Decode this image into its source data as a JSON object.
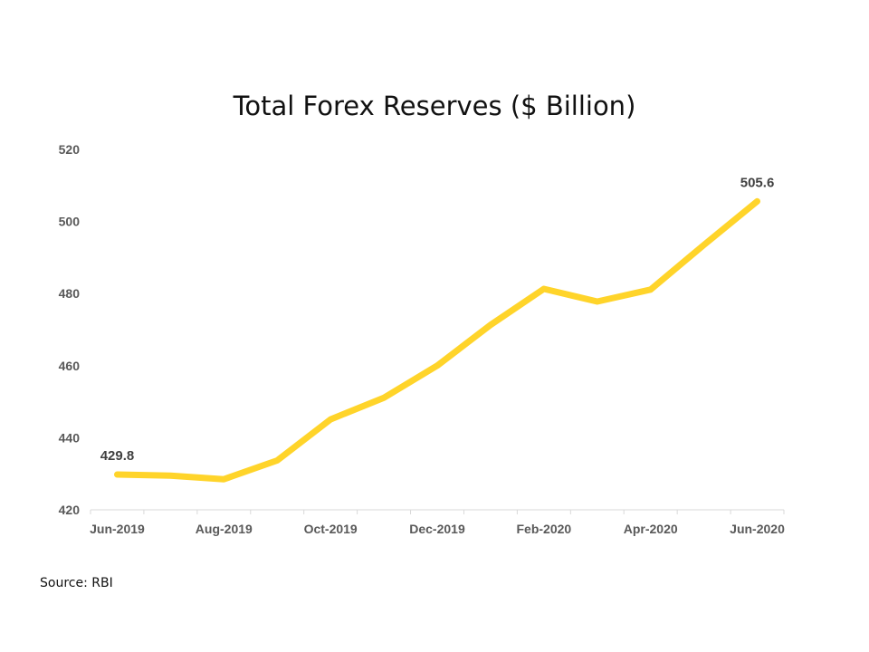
{
  "chart_data": {
    "type": "line",
    "title": "Total Forex Reserves ($ Billion)",
    "x": [
      "Jun-2019",
      "Jul-2019",
      "Aug-2019",
      "Sep-2019",
      "Oct-2019",
      "Nov-2019",
      "Dec-2019",
      "Jan-2020",
      "Feb-2020",
      "Mar-2020",
      "Apr-2020",
      "May-2020",
      "Jun-2020"
    ],
    "x_tick_labels": [
      "Jun-2019",
      "Aug-2019",
      "Oct-2019",
      "Dec-2019",
      "Feb-2020",
      "Apr-2020",
      "Jun-2020"
    ],
    "series": [
      {
        "values": [
          429.8,
          429.5,
          428.5,
          433.7,
          445.1,
          451.1,
          460.0,
          471.3,
          481.3,
          477.8,
          481.1,
          493.5,
          505.6
        ]
      }
    ],
    "data_labels": [
      {
        "index": 0,
        "text": "429.8"
      },
      {
        "index": 12,
        "text": "505.6"
      }
    ],
    "ylim": [
      420,
      520
    ],
    "y_ticks": [
      420,
      440,
      460,
      480,
      500,
      520
    ],
    "xlabel": "",
    "ylabel": "",
    "grid": false,
    "legend": "none",
    "line_color": "#FFD42A"
  },
  "source": "Source: RBI"
}
